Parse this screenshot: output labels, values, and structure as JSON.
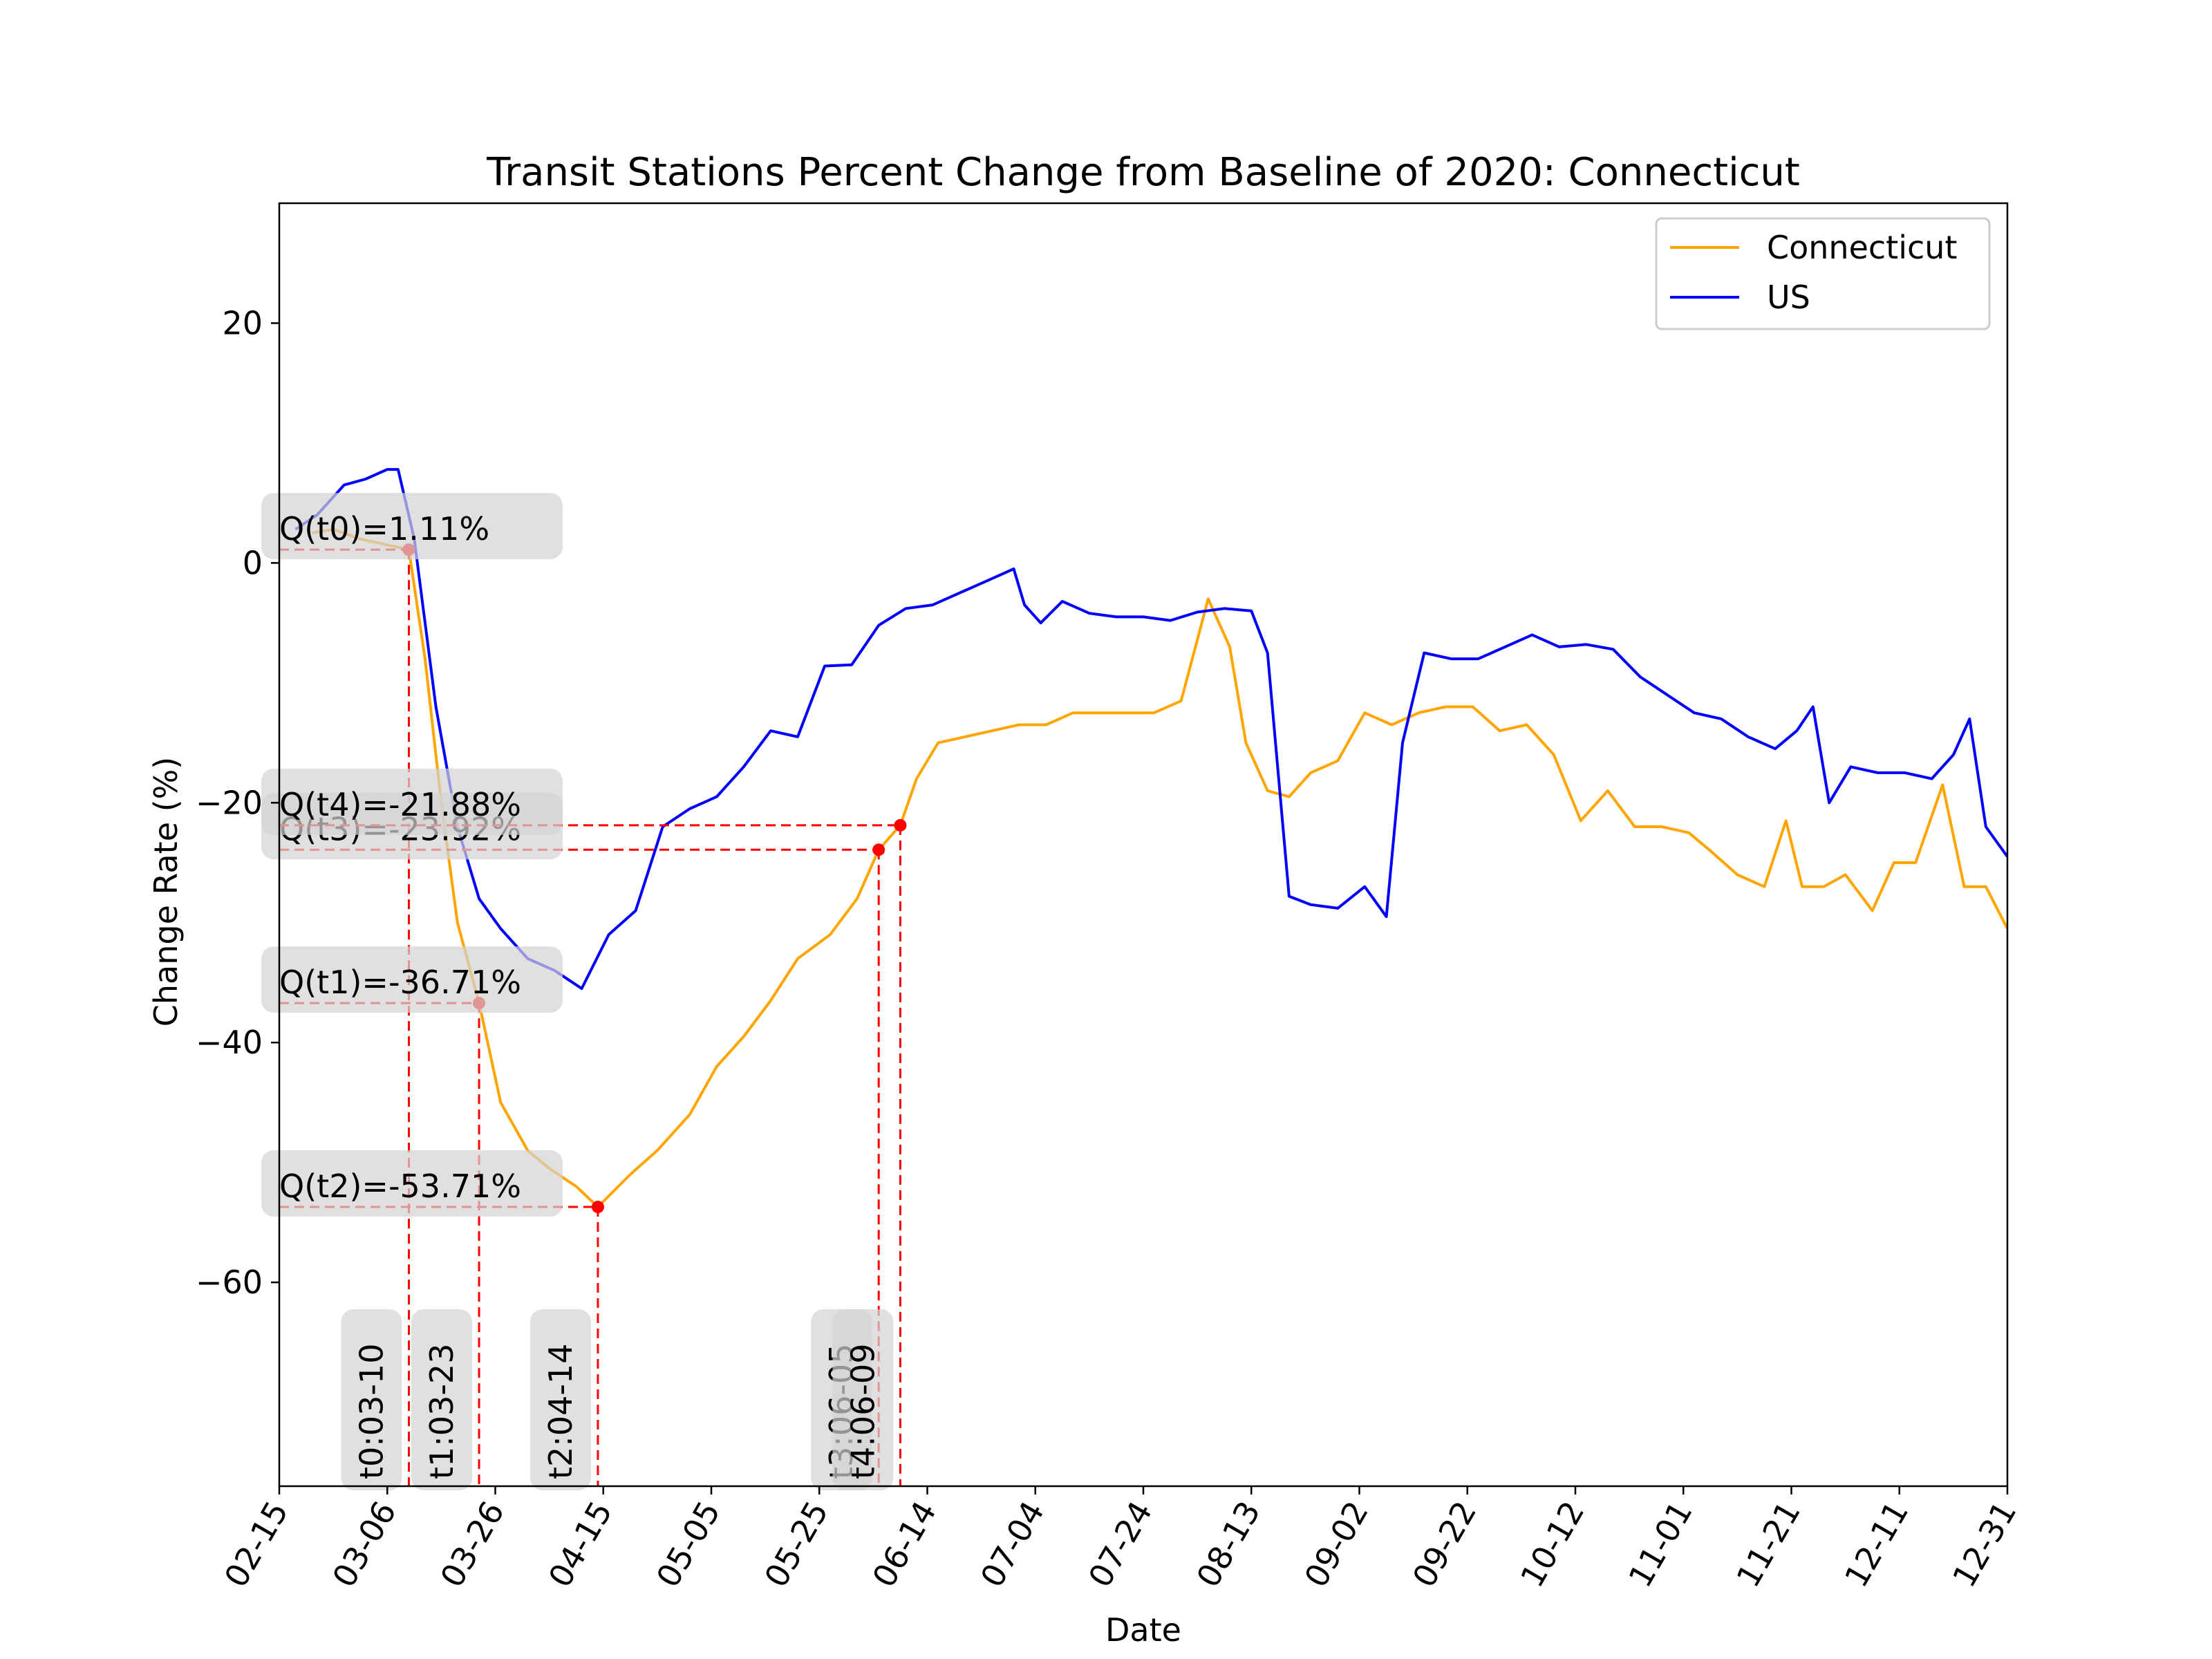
{
  "chart_data": {
    "type": "line",
    "title": "Transit Stations Percent Change from Baseline of 2020: Connecticut",
    "xlabel": "Date",
    "ylabel": "Change Rate (%)",
    "x_axis_type": "date",
    "x_range": [
      "2020-02-15",
      "2020-12-31"
    ],
    "ylim": [
      -77,
      30
    ],
    "x_tick_labels": [
      "02-15",
      "03-06",
      "03-26",
      "04-15",
      "05-05",
      "05-25",
      "06-14",
      "07-04",
      "07-24",
      "08-13",
      "09-02",
      "09-22",
      "10-12",
      "11-01",
      "11-21",
      "12-11",
      "12-31"
    ],
    "y_ticks": [
      20,
      0,
      -20,
      -40,
      -60
    ],
    "y_tick_labels": [
      "20",
      "0",
      "−20",
      "−40",
      "−60"
    ],
    "legend": {
      "placement": "top-right",
      "entries": [
        "Connecticut",
        "US"
      ]
    },
    "grid": false,
    "colors": {
      "Connecticut": "#ffa500",
      "US": "#0000ff",
      "markers": "#ff0000",
      "annotation_box": "#d3d3d3"
    },
    "series": [
      {
        "name": "Connecticut",
        "x": [
          "2020-02-21",
          "2020-02-25",
          "2020-03-01",
          "2020-03-05",
          "2020-03-10",
          "2020-03-13",
          "2020-03-16",
          "2020-03-19",
          "2020-03-23",
          "2020-03-27",
          "2020-04-01",
          "2020-04-05",
          "2020-04-10",
          "2020-04-14",
          "2020-04-20",
          "2020-04-25",
          "2020-05-01",
          "2020-05-06",
          "2020-05-11",
          "2020-05-16",
          "2020-05-21",
          "2020-05-27",
          "2020-06-01",
          "2020-06-05",
          "2020-06-09",
          "2020-06-12",
          "2020-06-16",
          "2020-06-21",
          "2020-06-26",
          "2020-07-01",
          "2020-07-06",
          "2020-07-11",
          "2020-07-16",
          "2020-07-21",
          "2020-07-26",
          "2020-07-31",
          "2020-08-05",
          "2020-08-09",
          "2020-08-12",
          "2020-08-16",
          "2020-08-20",
          "2020-08-24",
          "2020-08-29",
          "2020-09-03",
          "2020-09-08",
          "2020-09-13",
          "2020-09-18",
          "2020-09-23",
          "2020-09-28",
          "2020-10-03",
          "2020-10-08",
          "2020-10-13",
          "2020-10-18",
          "2020-10-23",
          "2020-10-28",
          "2020-11-02",
          "2020-11-06",
          "2020-11-11",
          "2020-11-16",
          "2020-11-20",
          "2020-11-23",
          "2020-11-27",
          "2020-12-01",
          "2020-12-06",
          "2020-12-10",
          "2020-12-14",
          "2020-12-19",
          "2020-12-23",
          "2020-12-27",
          "2020-12-31"
        ],
        "y": [
          2.5,
          2.8,
          2.0,
          1.6,
          1.11,
          -8,
          -20,
          -30,
          -36.71,
          -45,
          -49,
          -50.5,
          -52,
          -53.71,
          -51,
          -49,
          -46,
          -42,
          -39.5,
          -36.5,
          -33,
          -31,
          -28,
          -23.92,
          -21.88,
          -18,
          -15,
          -14.5,
          -14,
          -13.5,
          -13.5,
          -12.5,
          -12.5,
          -12.5,
          -12.5,
          -11.5,
          -3,
          -7,
          -15,
          -19,
          -19.5,
          -17.5,
          -16.5,
          -12.5,
          -13.5,
          -12.5,
          -12,
          -12,
          -14,
          -13.5,
          -16,
          -21.5,
          -19,
          -22,
          -22,
          -22.5,
          -24,
          -26,
          -27,
          -21.5,
          -27,
          -27,
          -26,
          -29,
          -25,
          -25,
          -18.5,
          -27,
          -27,
          -30.5
        ]
      },
      {
        "name": "US",
        "x": [
          "2020-02-18",
          "2020-02-22",
          "2020-02-27",
          "2020-03-02",
          "2020-03-06",
          "2020-03-08",
          "2020-03-11",
          "2020-03-15",
          "2020-03-19",
          "2020-03-23",
          "2020-03-27",
          "2020-04-01",
          "2020-04-06",
          "2020-04-11",
          "2020-04-16",
          "2020-04-21",
          "2020-04-26",
          "2020-05-01",
          "2020-05-06",
          "2020-05-11",
          "2020-05-16",
          "2020-05-21",
          "2020-05-26",
          "2020-05-31",
          "2020-06-05",
          "2020-06-10",
          "2020-06-15",
          "2020-06-20",
          "2020-06-25",
          "2020-06-30",
          "2020-07-02",
          "2020-07-05",
          "2020-07-09",
          "2020-07-14",
          "2020-07-19",
          "2020-07-24",
          "2020-07-29",
          "2020-08-03",
          "2020-08-08",
          "2020-08-13",
          "2020-08-16",
          "2020-08-20",
          "2020-08-24",
          "2020-08-29",
          "2020-09-03",
          "2020-09-07",
          "2020-09-10",
          "2020-09-14",
          "2020-09-19",
          "2020-09-24",
          "2020-09-29",
          "2020-10-04",
          "2020-10-09",
          "2020-10-14",
          "2020-10-19",
          "2020-10-24",
          "2020-10-29",
          "2020-11-03",
          "2020-11-08",
          "2020-11-13",
          "2020-11-18",
          "2020-11-22",
          "2020-11-25",
          "2020-11-28",
          "2020-12-02",
          "2020-12-07",
          "2020-12-12",
          "2020-12-17",
          "2020-12-21",
          "2020-12-24",
          "2020-12-27",
          "2020-12-31"
        ],
        "y": [
          2.8,
          4.0,
          6.5,
          7.0,
          7.8,
          7.8,
          2,
          -12,
          -22,
          -28,
          -30.5,
          -33,
          -34,
          -35.5,
          -31,
          -29,
          -22,
          -20.5,
          -19.5,
          -17,
          -14,
          -14.5,
          -8.6,
          -8.5,
          -5.2,
          -3.8,
          -3.5,
          -2.5,
          -1.5,
          -0.5,
          -3.5,
          -5,
          -3.2,
          -4.2,
          -4.5,
          -4.5,
          -4.8,
          -4.1,
          -3.8,
          -4.0,
          -7.5,
          -27.8,
          -28.5,
          -28.8,
          -27,
          -29.5,
          -15,
          -7.5,
          -8,
          -8,
          -7,
          -6,
          -7,
          -6.8,
          -7.2,
          -9.5,
          -11,
          -12.5,
          -13,
          -14.5,
          -15.5,
          -14,
          -12,
          -20,
          -17,
          -17.5,
          -17.5,
          -18,
          -16,
          -13,
          -22,
          -24.5
        ]
      }
    ],
    "annotations": {
      "points": [
        {
          "id": "t0",
          "date": "2020-03-10",
          "value": 1.11,
          "x_label": "t0:03-10",
          "value_label": "Q(t0)=1.11%"
        },
        {
          "id": "t1",
          "date": "2020-03-23",
          "value": -36.71,
          "x_label": "t1:03-23",
          "value_label": "Q(t1)=-36.71%"
        },
        {
          "id": "t2",
          "date": "2020-04-14",
          "value": -53.71,
          "x_label": "t2:04-14",
          "value_label": "Q(t2)=-53.71%"
        },
        {
          "id": "t3",
          "date": "2020-06-05",
          "value": -23.92,
          "x_label": "t3:06-05",
          "value_label": "Q(t3)=-23.92%"
        },
        {
          "id": "t4",
          "date": "2020-06-09",
          "value": -21.88,
          "x_label": "t4:06-09",
          "value_label": "Q(t4)=-21.88%"
        }
      ]
    }
  }
}
